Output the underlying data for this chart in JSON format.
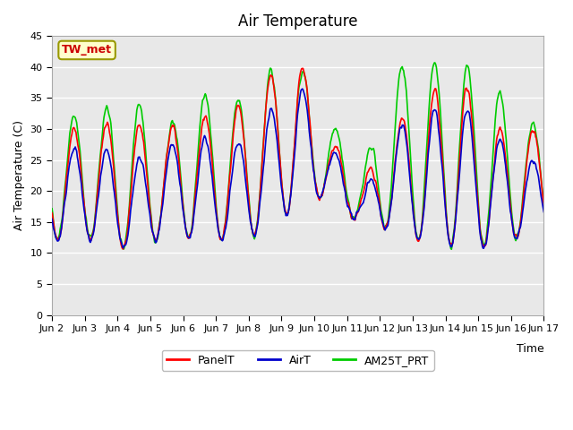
{
  "title": "Air Temperature",
  "ylabel": "Air Temperature (C)",
  "xlabel": "Time",
  "ylim": [
    0,
    45
  ],
  "yticks": [
    0,
    5,
    10,
    15,
    20,
    25,
    30,
    35,
    40,
    45
  ],
  "annotation_text": "TW_met",
  "annotation_bg": "#ffffcc",
  "annotation_border": "#999900",
  "annotation_text_color": "#cc0000",
  "line_PanelT_color": "#ff0000",
  "line_AirT_color": "#0000cc",
  "line_AM25T_color": "#00cc00",
  "line_width": 1.2,
  "background_color": "#ffffff",
  "plot_bg_color": "#e8e8e8",
  "grid_color": "#ffffff",
  "legend_labels": [
    "PanelT",
    "AirT",
    "AM25T_PRT"
  ],
  "x_tick_labels": [
    "Jun 2",
    "Jun 3",
    "Jun 4",
    "Jun 5",
    "Jun 6",
    "Jun 7",
    "Jun 8",
    "Jun 9",
    "Jun 10",
    "Jun 11",
    "Jun 12",
    "Jun 13",
    "Jun 14",
    "Jun 15",
    "Jun 16",
    "Jun 17"
  ],
  "n_days": 15,
  "points_per_day": 48,
  "day_min": [
    12,
    12,
    10,
    13,
    12,
    12,
    13,
    18,
    19,
    14,
    14,
    11,
    11,
    11,
    13
  ],
  "day_max_panel": [
    30,
    31,
    31,
    30,
    32,
    33,
    38,
    42,
    28,
    22,
    31,
    36,
    38,
    30,
    30
  ],
  "day_max_air": [
    27,
    27,
    25,
    27,
    29,
    27,
    32,
    38,
    27,
    20,
    30,
    33,
    34,
    29,
    25
  ],
  "day_max_am25": [
    32,
    33,
    35,
    30,
    36,
    34,
    39,
    41,
    31,
    24,
    40,
    41,
    41,
    37,
    31
  ]
}
